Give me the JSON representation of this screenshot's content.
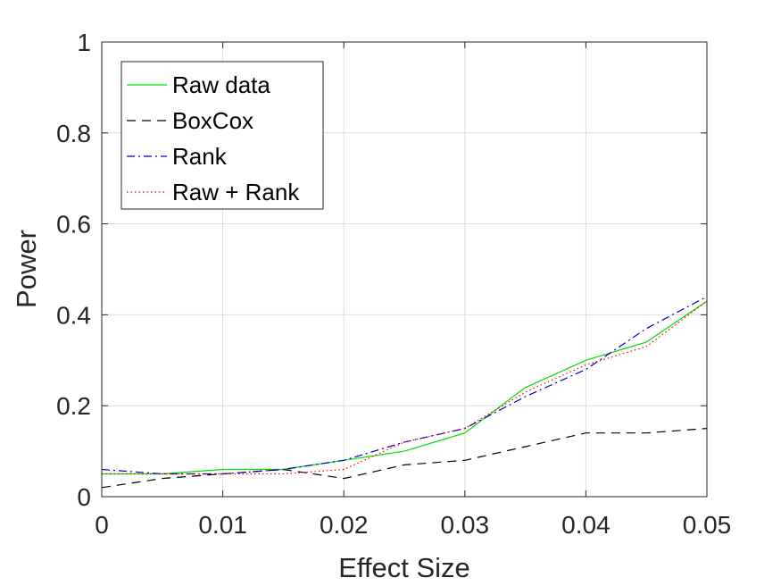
{
  "chart_data": {
    "type": "line",
    "title": "",
    "xlabel": "Effect Size",
    "ylabel": "Power",
    "xlim": [
      0,
      0.05
    ],
    "ylim": [
      0,
      1
    ],
    "xticks": [
      0,
      0.01,
      0.02,
      0.03,
      0.04,
      0.05
    ],
    "xtick_labels": [
      "0",
      "0.01",
      "0.02",
      "0.03",
      "0.04",
      "0.05"
    ],
    "yticks": [
      0,
      0.2,
      0.4,
      0.6,
      0.8,
      1
    ],
    "ytick_labels": [
      "0",
      "0.2",
      "0.4",
      "0.6",
      "0.8",
      "1"
    ],
    "grid": true,
    "legend_position": "top-left",
    "x": [
      0,
      0.005,
      0.01,
      0.015,
      0.02,
      0.025,
      0.03,
      0.035,
      0.04,
      0.045,
      0.05
    ],
    "series": [
      {
        "name": "Raw data",
        "color": "#00dd00",
        "dash": "solid",
        "values": [
          0.05,
          0.05,
          0.06,
          0.06,
          0.08,
          0.1,
          0.14,
          0.24,
          0.3,
          0.34,
          0.43
        ]
      },
      {
        "name": "BoxCox",
        "color": "#000000",
        "dash": "dashed",
        "values": [
          0.02,
          0.04,
          0.05,
          0.06,
          0.04,
          0.07,
          0.08,
          0.11,
          0.14,
          0.14,
          0.15
        ]
      },
      {
        "name": "Rank",
        "color": "#0000bb",
        "dash": "dashdot",
        "values": [
          0.06,
          0.05,
          0.05,
          0.06,
          0.08,
          0.12,
          0.15,
          0.22,
          0.28,
          0.37,
          0.44
        ]
      },
      {
        "name": "Raw + Rank",
        "color": "#ff0000",
        "dash": "dotted",
        "values": [
          0.05,
          0.05,
          0.05,
          0.05,
          0.06,
          0.12,
          0.15,
          0.23,
          0.29,
          0.33,
          0.43
        ]
      }
    ]
  }
}
